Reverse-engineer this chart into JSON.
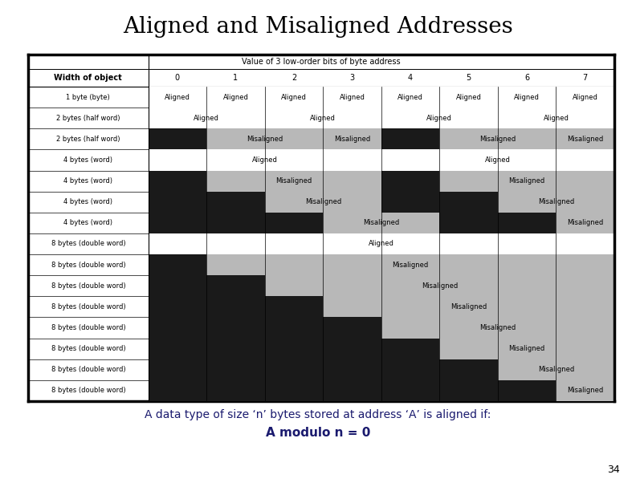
{
  "title": "Aligned and Misaligned Addresses",
  "subtitle": "Value of 3 low-order bits of byte address",
  "footer_text1": "A data type of size ‘n’ bytes stored at address ‘A’ is aligned if:",
  "footer_text2": "A modulo n = 0",
  "page_number": "34",
  "col_headers": [
    "Width of object",
    "0",
    "1",
    "2",
    "3",
    "4",
    "5",
    "6",
    "7"
  ],
  "rows": [
    {
      "label": "1 byte (byte)",
      "cells": [
        {
          "text": "Aligned",
          "color": "white",
          "span": 1
        },
        {
          "text": "Aligned",
          "color": "white",
          "span": 1
        },
        {
          "text": "Aligned",
          "color": "white",
          "span": 1
        },
        {
          "text": "Aligned",
          "color": "white",
          "span": 1
        },
        {
          "text": "Aligned",
          "color": "white",
          "span": 1
        },
        {
          "text": "Aligned",
          "color": "white",
          "span": 1
        },
        {
          "text": "Aligned",
          "color": "white",
          "span": 1
        },
        {
          "text": "Aligned",
          "color": "white",
          "span": 1
        }
      ]
    },
    {
      "label": "2 bytes (half word)",
      "cells": [
        {
          "text": "Aligned",
          "color": "white",
          "span": 2
        },
        {
          "text": "Aligned",
          "color": "white",
          "span": 2
        },
        {
          "text": "Aligned",
          "color": "white",
          "span": 2
        },
        {
          "text": "Aligned",
          "color": "white",
          "span": 2
        }
      ]
    },
    {
      "label": "2 bytes (half word)",
      "cells": [
        {
          "text": "",
          "color": "black",
          "span": 1
        },
        {
          "text": "Misaligned",
          "color": "gray",
          "span": 2
        },
        {
          "text": "Misaligned",
          "color": "gray",
          "span": 1
        },
        {
          "text": "",
          "color": "black",
          "span": 1
        },
        {
          "text": "Misaligned",
          "color": "gray",
          "span": 2
        },
        {
          "text": "Misaligned",
          "color": "gray",
          "span": 1
        }
      ]
    },
    {
      "label": "4 bytes (word)",
      "cells": [
        {
          "text": "Aligned",
          "color": "white",
          "span": 4
        },
        {
          "text": "Aligned",
          "color": "white",
          "span": 4
        }
      ]
    },
    {
      "label": "4 bytes (word)",
      "cells": [
        {
          "text": "",
          "color": "black",
          "span": 1
        },
        {
          "text": "Misaligned",
          "color": "gray",
          "span": 3
        },
        {
          "text": "",
          "color": "black",
          "span": 1
        },
        {
          "text": "Misaligned",
          "color": "gray",
          "span": 3
        }
      ]
    },
    {
      "label": "4 bytes (word)",
      "cells": [
        {
          "text": "",
          "color": "black",
          "span": 2
        },
        {
          "text": "Misaligned",
          "color": "gray",
          "span": 2
        },
        {
          "text": "",
          "color": "black",
          "span": 2
        },
        {
          "text": "Misaligned",
          "color": "gray",
          "span": 2
        }
      ]
    },
    {
      "label": "4 bytes (word)",
      "cells": [
        {
          "text": "",
          "color": "black",
          "span": 3
        },
        {
          "text": "Misaligned",
          "color": "gray",
          "span": 2
        },
        {
          "text": "",
          "color": "black",
          "span": 2
        },
        {
          "text": "Misaligned",
          "color": "gray",
          "span": 1
        }
      ]
    },
    {
      "label": "8 bytes (double word)",
      "cells": [
        {
          "text": "Aligned",
          "color": "white",
          "span": 8
        }
      ]
    },
    {
      "label": "8 bytes (double word)",
      "cells": [
        {
          "text": "",
          "color": "black",
          "span": 1
        },
        {
          "text": "Misaligned",
          "color": "gray",
          "span": 7
        }
      ]
    },
    {
      "label": "8 bytes (double word)",
      "cells": [
        {
          "text": "",
          "color": "black",
          "span": 2
        },
        {
          "text": "Misaligned",
          "color": "gray",
          "span": 6
        }
      ]
    },
    {
      "label": "8 bytes (double word)",
      "cells": [
        {
          "text": "",
          "color": "black",
          "span": 3
        },
        {
          "text": "Misaligned",
          "color": "gray",
          "span": 5
        }
      ]
    },
    {
      "label": "8 bytes (double word)",
      "cells": [
        {
          "text": "",
          "color": "black",
          "span": 4
        },
        {
          "text": "Misaligned",
          "color": "gray",
          "span": 4
        }
      ]
    },
    {
      "label": "8 bytes (double word)",
      "cells": [
        {
          "text": "",
          "color": "black",
          "span": 5
        },
        {
          "text": "Misaligned",
          "color": "gray",
          "span": 3
        }
      ]
    },
    {
      "label": "8 bytes (double word)",
      "cells": [
        {
          "text": "",
          "color": "black",
          "span": 6
        },
        {
          "text": "Misaligned",
          "color": "gray",
          "span": 2
        }
      ]
    },
    {
      "label": "8 bytes (double word)",
      "cells": [
        {
          "text": "",
          "color": "black",
          "span": 7
        },
        {
          "text": "Misaligned",
          "color": "gray",
          "span": 1
        }
      ]
    }
  ],
  "bg_color": "#ffffff",
  "title_color": "#000000",
  "footer_color1": "#1a1a6e",
  "footer_color2": "#1a1a6e",
  "gray_cell_color": "#b8b8b8",
  "black_cell_color": "#1a1a1a",
  "title_fontsize": 20,
  "subtitle_fontsize": 7,
  "header_fontsize": 7,
  "cell_fontsize": 6,
  "label_fontsize": 6,
  "footer1_fontsize": 10,
  "footer2_fontsize": 11
}
